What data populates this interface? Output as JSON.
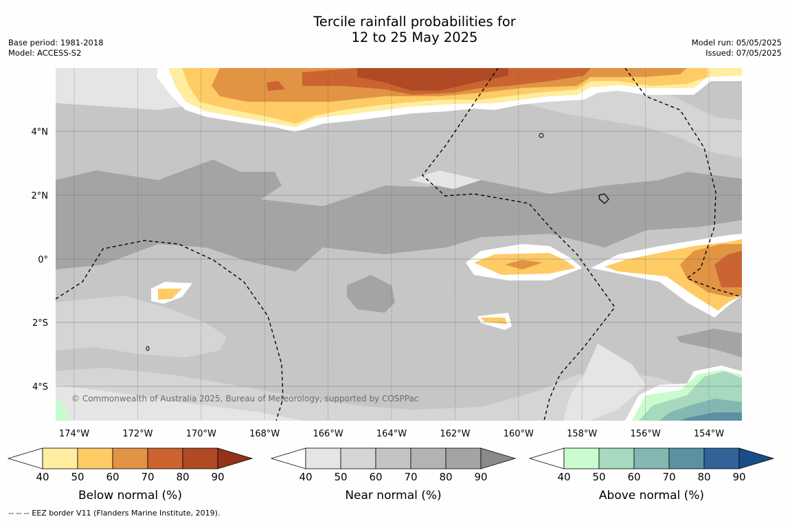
{
  "title": {
    "line1": "Tercile rainfall probabilities for",
    "line2": "12 to 25 May 2025"
  },
  "meta_left": {
    "base_period": "Base period: 1981-2018",
    "model": "Model: ACCESS-S2"
  },
  "meta_right": {
    "model_run": "Model run: 05/05/2025",
    "issued": "Issued: 07/05/2025"
  },
  "map": {
    "lat_labels": [
      "4°N",
      "2°N",
      "0°",
      "2°S",
      "4°S"
    ],
    "lon_labels": [
      "174°W",
      "172°W",
      "170°W",
      "168°W",
      "166°W",
      "164°W",
      "162°W",
      "160°W",
      "158°W",
      "156°W",
      "154°W"
    ],
    "copyright": "© Commonwealth of Australia 2025, Bureau of Meteorology, supported by COSPPac",
    "background_color": "#c6c6c6"
  },
  "legends": [
    {
      "label": "Below normal (%)",
      "ticks": [
        "40",
        "50",
        "60",
        "70",
        "80",
        "90"
      ],
      "colors": [
        "#ffffff",
        "#ffeda0",
        "#fecb65",
        "#e09444",
        "#cb6431",
        "#b04a25",
        "#93331a"
      ]
    },
    {
      "label": "Near normal (%)",
      "ticks": [
        "40",
        "50",
        "60",
        "70",
        "80",
        "90"
      ],
      "colors": [
        "#ffffff",
        "#e5e5e5",
        "#d5d5d5",
        "#c4c4c4",
        "#b3b3b3",
        "#a3a3a3",
        "#8a8a8a"
      ]
    },
    {
      "label": "Above normal (%)",
      "ticks": [
        "40",
        "50",
        "60",
        "70",
        "80",
        "90"
      ],
      "colors": [
        "#ffffff",
        "#c9fbcf",
        "#a6d9bd",
        "#82b8b1",
        "#5b91a3",
        "#316399",
        "#194d86"
      ]
    }
  ],
  "footer": "--  --  -- EEZ border V11 (Flanders Marine Institute, 2019)."
}
